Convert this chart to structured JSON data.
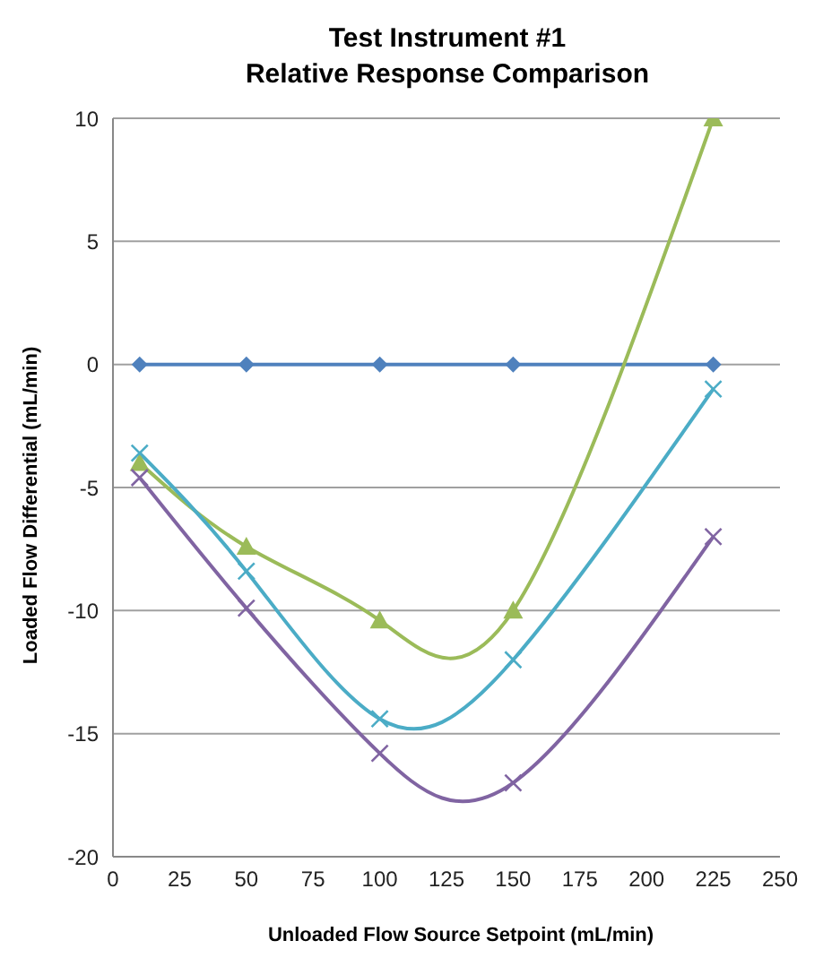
{
  "chart_data": {
    "type": "line",
    "title": "Test Instrument #1\nRelative Response Comparison",
    "xlabel": "Unloaded Flow Source Setpoint (mL/min)",
    "ylabel": "Loaded Flow Differential (mL/min)",
    "x": [
      10,
      50,
      100,
      150,
      225
    ],
    "series": [
      {
        "color": "#4f81bd",
        "marker": "diamond",
        "values": [
          0,
          0,
          0,
          0,
          0
        ]
      },
      {
        "color": "#9bbb59",
        "marker": "triangle",
        "values": [
          -4,
          -7.4,
          -10.4,
          -10,
          10
        ]
      },
      {
        "color": "#4bacc6",
        "marker": "cross",
        "values": [
          -3.6,
          -8.4,
          -14.4,
          -12,
          -1
        ]
      },
      {
        "color": "#8064a2",
        "marker": "cross",
        "values": [
          -4.6,
          -9.9,
          -15.8,
          -17,
          -7
        ]
      }
    ],
    "xlim": [
      0,
      250
    ],
    "xticks": [
      0,
      25,
      50,
      75,
      100,
      125,
      150,
      175,
      200,
      225,
      250
    ],
    "ylim": [
      -20,
      10
    ],
    "yticks": [
      -20,
      -15,
      -10,
      -5,
      0,
      5,
      10
    ],
    "grid": "y",
    "legend": false,
    "line_style": "solid"
  }
}
